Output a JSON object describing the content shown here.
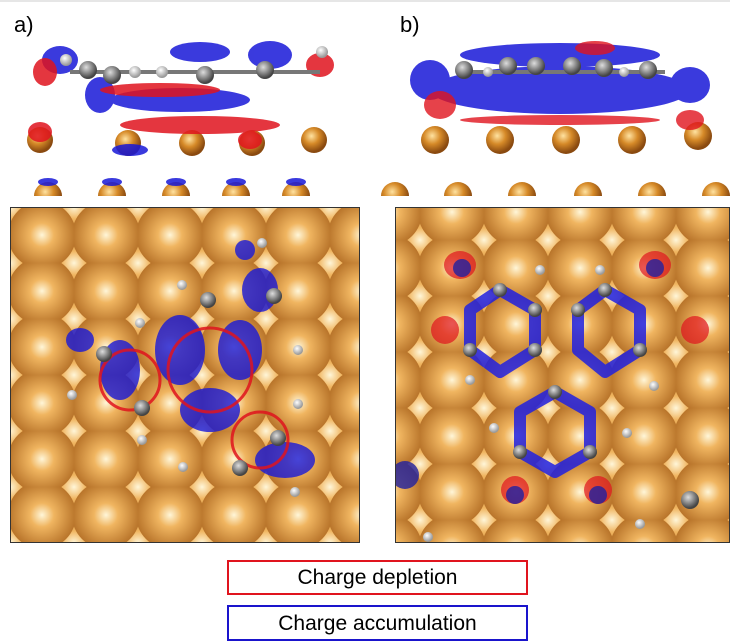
{
  "panels": [
    {
      "label": "a)"
    },
    {
      "label": "b)"
    }
  ],
  "legend": {
    "items": [
      {
        "label": "Charge depletion",
        "color": "#e0141e"
      },
      {
        "label": "Charge accumulation",
        "color": "#1a14cc"
      }
    ]
  }
}
